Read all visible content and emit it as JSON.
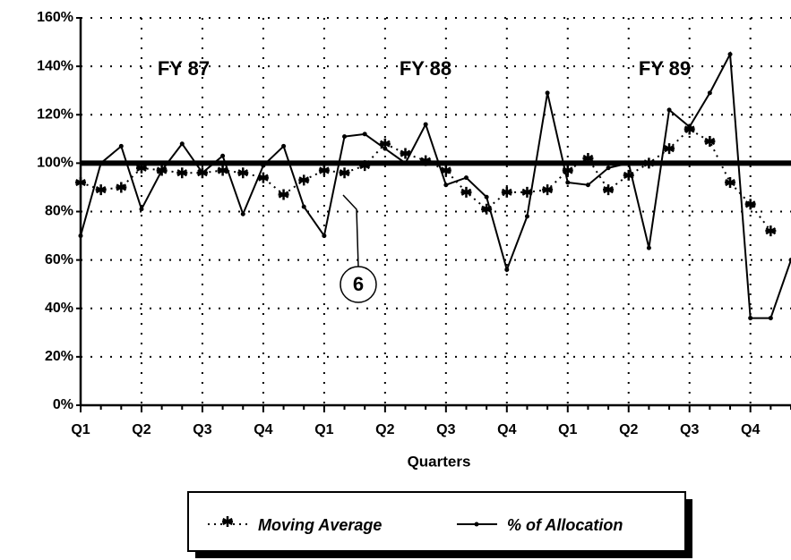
{
  "chart_data": {
    "type": "line",
    "x_label": "Quarters",
    "annotations": [
      "FY 87",
      "FY 88",
      "FY 89",
      "6"
    ],
    "categories": [
      "Q1",
      null,
      null,
      "Q2",
      null,
      null,
      "Q3",
      null,
      null,
      "Q4",
      null,
      null,
      "Q1",
      null,
      null,
      "Q2",
      null,
      null,
      "Q3",
      null,
      null,
      "Q4",
      null,
      null,
      "Q1",
      null,
      null,
      "Q2",
      null,
      null,
      "Q3",
      null,
      null,
      "Q4",
      null,
      null
    ],
    "series": [
      {
        "name": "Moving Average",
        "color": "#000000",
        "marker": "asterisk",
        "values": [
          92,
          89,
          90,
          98,
          97,
          96,
          96,
          97,
          96,
          94,
          87,
          93,
          97,
          96,
          99,
          108,
          104,
          101,
          97,
          88,
          81,
          88,
          88,
          89,
          97,
          102,
          89,
          95,
          100,
          106,
          114,
          109,
          92,
          83,
          72,
          null
        ]
      },
      {
        "name": "% of Allocation",
        "color": "#000000",
        "marker": "dot",
        "values": [
          70,
          100,
          107,
          81,
          97,
          108,
          96,
          103,
          79,
          99,
          107,
          82,
          70,
          111,
          112,
          106,
          100,
          116,
          91,
          94,
          86,
          56,
          78,
          129,
          92,
          91,
          98,
          100,
          65,
          122,
          115,
          129,
          145,
          36,
          36,
          60
        ]
      }
    ],
    "reference_line": 100,
    "ylim": [
      0,
      160
    ],
    "yticks": [
      {
        "value": 0,
        "label": "0%"
      },
      {
        "value": 20,
        "label": "20%"
      },
      {
        "value": 40,
        "label": "40%"
      },
      {
        "value": 60,
        "label": "60%"
      },
      {
        "value": 80,
        "label": "80%"
      },
      {
        "value": 100,
        "label": "100%"
      },
      {
        "value": 120,
        "label": "120%"
      },
      {
        "value": 140,
        "label": "140%"
      },
      {
        "value": 160,
        "label": "160%"
      }
    ],
    "grid": true
  }
}
